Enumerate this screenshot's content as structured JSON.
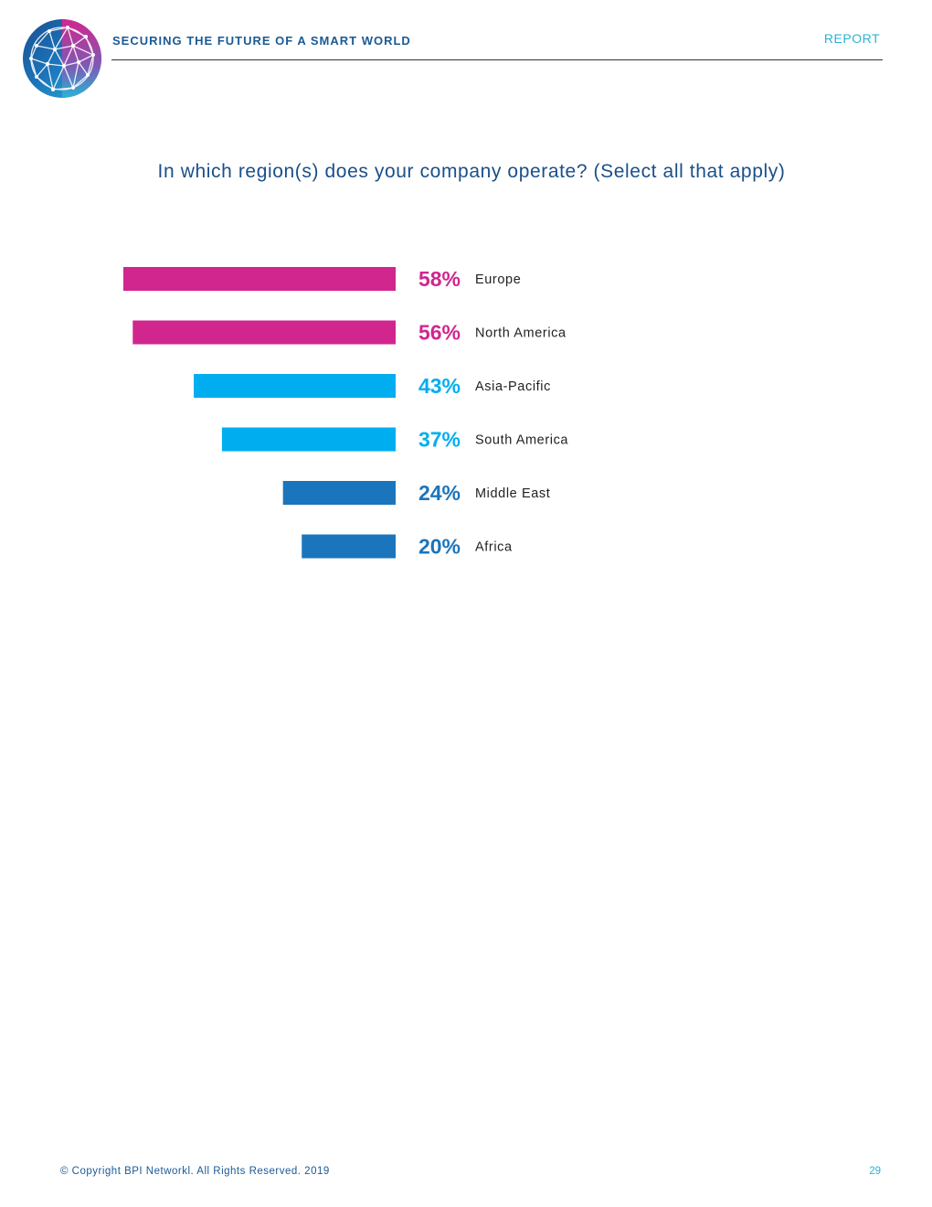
{
  "header": {
    "title": "SECURING THE FUTURE OF A SMART WORLD",
    "tag": "REPORT"
  },
  "colors": {
    "magenta": "#d1268e",
    "cyan": "#00aeef",
    "blue": "#1b75bc",
    "navy": "#1a4f8a",
    "teal": "#29b3d6"
  },
  "chart_data": {
    "type": "bar",
    "orientation": "horizontal",
    "title": "In which region(s) does your company operate? (Select all that apply)",
    "categories": [
      "Europe",
      "North America",
      "Asia-Pacific",
      "South America",
      "Middle East",
      "Africa"
    ],
    "values": [
      58,
      56,
      43,
      37,
      24,
      20
    ],
    "value_labels": [
      "58%",
      "56%",
      "43%",
      "37%",
      "24%",
      "20%"
    ],
    "bar_colors": [
      "#d1268e",
      "#d1268e",
      "#00aeef",
      "#00aeef",
      "#1b75bc",
      "#1b75bc"
    ],
    "unit": "%",
    "xlim": [
      0,
      58
    ]
  },
  "footer": {
    "copyright": "© Copyright BPI Networkl. All Rights Reserved. 2019",
    "page_number": "29"
  }
}
